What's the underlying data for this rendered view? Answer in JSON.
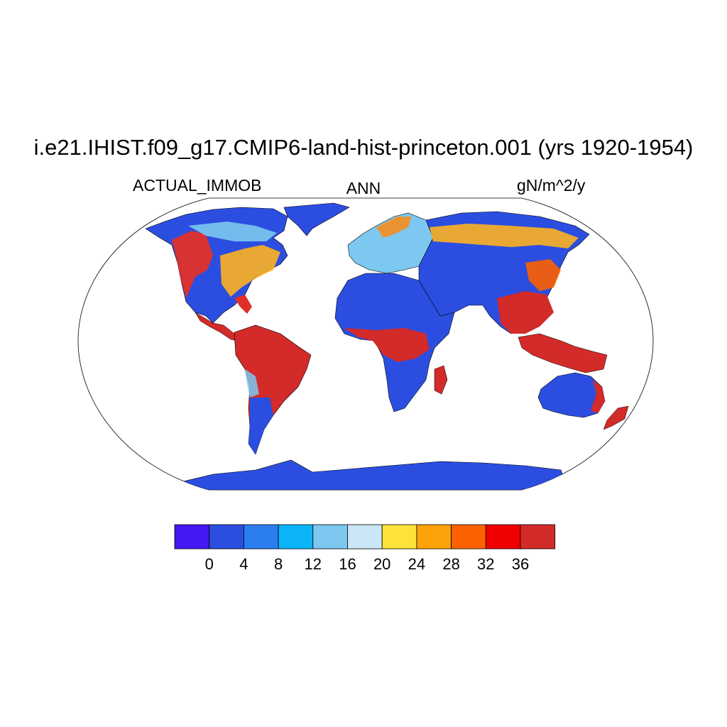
{
  "title": "i.e21.IHIST.f09_g17.CMIP6-land-hist-princeton.001 (yrs 1920-1954)",
  "left_subtitle": "ACTUAL_IMMOB",
  "center_subtitle": "ANN",
  "right_subtitle": "gN/m^2/y",
  "colorbar": {
    "colors": [
      "#4418f0",
      "#2b4ee0",
      "#2c7ef0",
      "#0bb4f7",
      "#7cc8f0",
      "#cbe6f7",
      "#fde23a",
      "#fda208",
      "#fd6000",
      "#f00000",
      "#d32a2a"
    ],
    "tick_labels": [
      "0",
      "4",
      "8",
      "12",
      "16",
      "20",
      "24",
      "28",
      "32",
      "36"
    ]
  },
  "legend": {
    "type": "discrete-colorbar",
    "units": "gN/m^2/y",
    "bounds": [
      0,
      36
    ],
    "step": 4
  }
}
